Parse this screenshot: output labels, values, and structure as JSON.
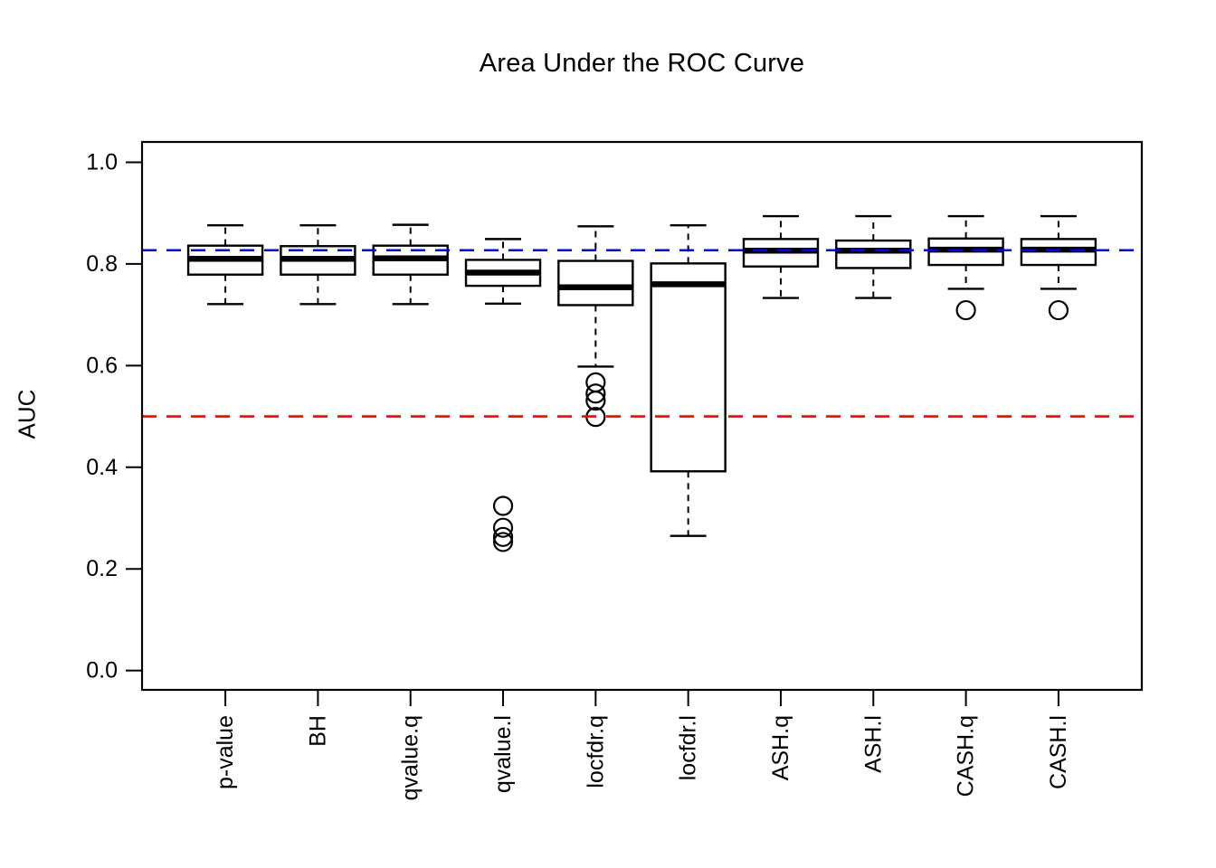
{
  "figure": {
    "title": "Area Under the ROC Curve",
    "y_axis_title": "AUC"
  },
  "chart_data": {
    "type": "boxplot",
    "title": "Area Under the ROC Curve",
    "xlabel": "",
    "ylabel": "AUC",
    "grid": false,
    "legend": "none",
    "ylim": [
      -0.038,
      1.04
    ],
    "y_tick_values": [
      0.0,
      0.2,
      0.4,
      0.6,
      0.8,
      1.0
    ],
    "y_tick_labels": [
      "0.0",
      "0.2",
      "0.4",
      "0.6",
      "0.8",
      "1.0"
    ],
    "categories": [
      "p-value",
      "BH",
      "qvalue.q",
      "qvalue.l",
      "locfdr.q",
      "locfdr.l",
      "ASH.q",
      "ASH.l",
      "CASH.q",
      "CASH.l"
    ],
    "series": [
      {
        "name": "p-value",
        "whisker_low": 0.721,
        "q1": 0.779,
        "median": 0.81,
        "q3": 0.836,
        "whisker_high": 0.876,
        "outliers": []
      },
      {
        "name": "BH",
        "whisker_low": 0.721,
        "q1": 0.779,
        "median": 0.81,
        "q3": 0.835,
        "whisker_high": 0.876,
        "outliers": []
      },
      {
        "name": "qvalue.q",
        "whisker_low": 0.721,
        "q1": 0.779,
        "median": 0.811,
        "q3": 0.836,
        "whisker_high": 0.877,
        "outliers": []
      },
      {
        "name": "qvalue.l",
        "whisker_low": 0.722,
        "q1": 0.757,
        "median": 0.783,
        "q3": 0.808,
        "whisker_high": 0.849,
        "outliers": [
          0.324,
          0.281,
          0.263,
          0.253
        ]
      },
      {
        "name": "locfdr.q",
        "whisker_low": 0.598,
        "q1": 0.719,
        "median": 0.754,
        "q3": 0.806,
        "whisker_high": 0.874,
        "outliers": [
          0.567,
          0.545,
          0.531,
          0.499
        ]
      },
      {
        "name": "locfdr.l",
        "whisker_low": 0.265,
        "q1": 0.392,
        "median": 0.76,
        "q3": 0.801,
        "whisker_high": 0.876,
        "outliers": []
      },
      {
        "name": "ASH.q",
        "whisker_low": 0.733,
        "q1": 0.795,
        "median": 0.826,
        "q3": 0.849,
        "whisker_high": 0.894,
        "outliers": []
      },
      {
        "name": "ASH.l",
        "whisker_low": 0.733,
        "q1": 0.792,
        "median": 0.826,
        "q3": 0.846,
        "whisker_high": 0.894,
        "outliers": []
      },
      {
        "name": "CASH.q",
        "whisker_low": 0.751,
        "q1": 0.798,
        "median": 0.828,
        "q3": 0.85,
        "whisker_high": 0.894,
        "outliers": [
          0.709
        ]
      },
      {
        "name": "CASH.l",
        "whisker_low": 0.751,
        "q1": 0.798,
        "median": 0.828,
        "q3": 0.849,
        "whisker_high": 0.894,
        "outliers": [
          0.709
        ]
      }
    ],
    "reference_lines": [
      {
        "value": 0.827,
        "color": "#0000ff",
        "style": "dashed"
      },
      {
        "value": 0.5,
        "color": "#ff0000",
        "style": "dashed"
      }
    ],
    "colors": {
      "box_fill": "#ffffff",
      "stroke": "#000000",
      "background": "#ffffff"
    }
  }
}
